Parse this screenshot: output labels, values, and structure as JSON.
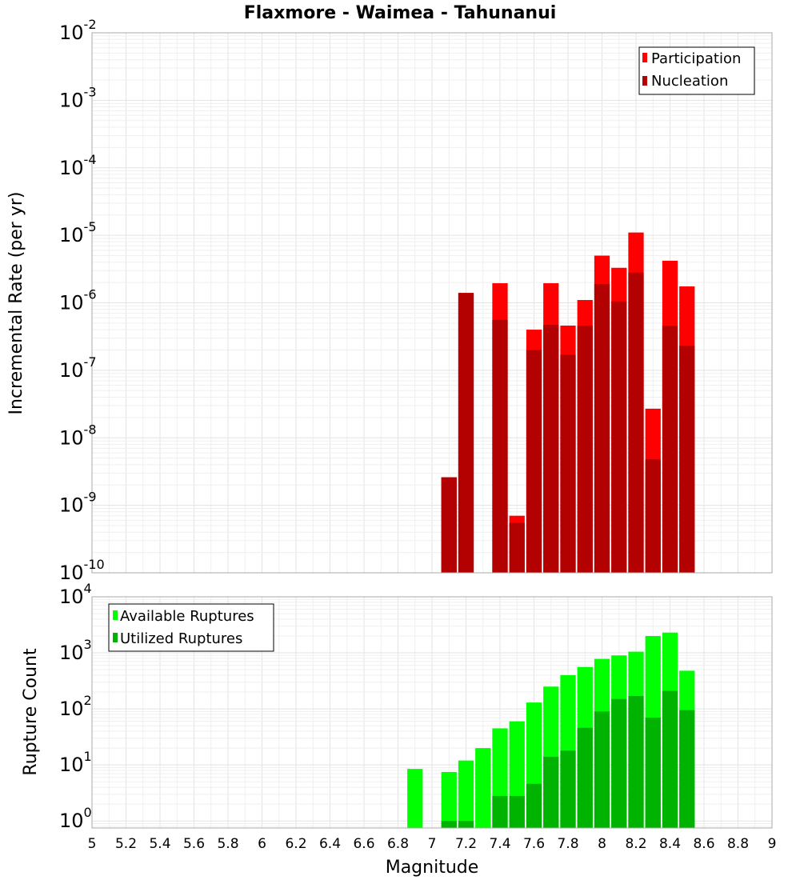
{
  "chart_data": [
    {
      "type": "bar",
      "title": "Flaxmore - Waimea - Tahunanui",
      "xlabel": "",
      "ylabel": "Incremental Rate (per yr)",
      "yscale": "log",
      "ylim": [
        1e-10,
        0.01
      ],
      "xlim": [
        5,
        9
      ],
      "grid": true,
      "legend": "top-right",
      "x": [
        7.1,
        7.2,
        7.3,
        7.4,
        7.5,
        7.6,
        7.7,
        7.8,
        7.9,
        8.0,
        8.1,
        8.2,
        8.3,
        8.4,
        8.5
      ],
      "series": [
        {
          "name": "Participation",
          "color": "#ff0000",
          "values": [
            2.6e-09,
            1.4e-06,
            null,
            1.95e-06,
            7e-10,
            4e-07,
            1.95e-06,
            4.6e-07,
            1.1e-06,
            5e-06,
            3.3e-06,
            1.1e-05,
            2.7e-08,
            4.2e-06,
            1.75e-06
          ]
        },
        {
          "name": "Nucleation",
          "color": "#b30000",
          "values": [
            2.6e-09,
            1.4e-06,
            null,
            5.6e-07,
            5.5e-10,
            2e-07,
            4.7e-07,
            1.7e-07,
            4.6e-07,
            1.9e-06,
            1.05e-06,
            2.8e-06,
            4.8e-09,
            4.6e-07,
            2.3e-07
          ]
        }
      ]
    },
    {
      "type": "bar",
      "title": "",
      "xlabel": "Magnitude",
      "ylabel": "Rupture Count",
      "yscale": "log",
      "ylim": [
        0.75,
        10000
      ],
      "xlim": [
        5,
        9
      ],
      "grid": true,
      "legend": "top-left",
      "x": [
        6.9,
        7.1,
        7.2,
        7.3,
        7.4,
        7.5,
        7.6,
        7.7,
        7.8,
        7.9,
        8.0,
        8.1,
        8.2,
        8.3,
        8.4,
        8.5
      ],
      "series": [
        {
          "name": "Available Ruptures",
          "color": "#00ff00",
          "values": [
            8.5,
            7.5,
            12,
            20,
            45,
            60,
            130,
            250,
            400,
            560,
            780,
            900,
            1050,
            2000,
            2300,
            480
          ]
        },
        {
          "name": "Utilized Ruptures",
          "color": "#00b300",
          "values": [
            null,
            1,
            1,
            null,
            2.8,
            2.8,
            4.6,
            14,
            18,
            46,
            90,
            150,
            170,
            70,
            210,
            95
          ]
        }
      ]
    }
  ],
  "x_ticks": [
    "5",
    "5.2",
    "5.4",
    "5.6",
    "5.8",
    "6",
    "6.2",
    "6.4",
    "6.6",
    "6.8",
    "7",
    "7.2",
    "7.4",
    "7.6",
    "7.8",
    "8",
    "8.2",
    "8.4",
    "8.6",
    "8.8",
    "9"
  ],
  "top_y_ticks": [
    {
      "base": "10",
      "exp": "-10",
      "value": 1e-10
    },
    {
      "base": "10",
      "exp": "-9",
      "value": 1e-09
    },
    {
      "base": "10",
      "exp": "-8",
      "value": 1e-08
    },
    {
      "base": "10",
      "exp": "-7",
      "value": 1e-07
    },
    {
      "base": "10",
      "exp": "-6",
      "value": 1e-06
    },
    {
      "base": "10",
      "exp": "-5",
      "value": 1e-05
    },
    {
      "base": "10",
      "exp": "-4",
      "value": 0.0001
    },
    {
      "base": "10",
      "exp": "-3",
      "value": 0.001
    },
    {
      "base": "10",
      "exp": "-2",
      "value": 0.01
    }
  ],
  "bottom_y_ticks": [
    {
      "base": "10",
      "exp": "0",
      "value": 1
    },
    {
      "base": "10",
      "exp": "1",
      "value": 10
    },
    {
      "base": "10",
      "exp": "2",
      "value": 100
    },
    {
      "base": "10",
      "exp": "3",
      "value": 1000
    },
    {
      "base": "10",
      "exp": "4",
      "value": 10000
    }
  ]
}
